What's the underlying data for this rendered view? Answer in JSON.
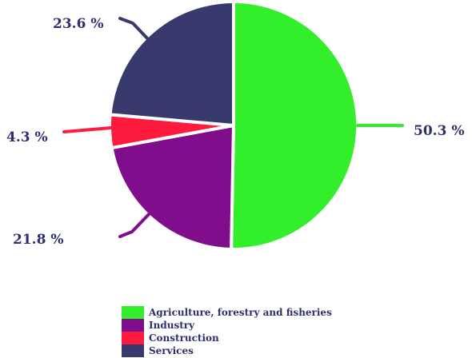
{
  "chart_data": {
    "type": "pie",
    "title": "",
    "unit": "%",
    "slices": [
      {
        "label": "Agriculture, forestry and fisheries",
        "value": 50.3,
        "value_label": "50.3 %",
        "color": "#33ee2a"
      },
      {
        "label": "Industry",
        "value": 21.8,
        "value_label": "21.8 %",
        "color": "#800e8c"
      },
      {
        "label": "Construction",
        "value": 4.3,
        "value_label": "4.3 %",
        "color": "#ff1b3d"
      },
      {
        "label": "Services",
        "value": 23.6,
        "value_label": "23.6 %",
        "color": "#383a6e"
      }
    ],
    "start_angle_deg": 0,
    "direction": "clockwise",
    "legend_position": "bottom",
    "label_color": "#2e2f6b"
  }
}
